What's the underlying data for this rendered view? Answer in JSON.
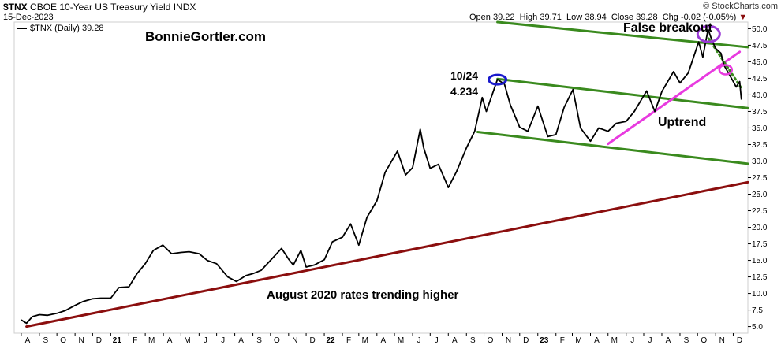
{
  "header": {
    "symbol": "$TNX",
    "name": "CBOE 10-Year US Treasury Yield",
    "exchange": "INDX",
    "date": "15-Dec-2023",
    "credit": "© StockCharts.com",
    "open_label": "Open",
    "open": "39.22",
    "high_label": "High",
    "high": "39.71",
    "low_label": "Low",
    "low": "38.94",
    "close_label": "Close",
    "close": "39.28",
    "chg_label": "Chg",
    "chg": "-0.02 (-0.05%)",
    "legend": "$TNX (Daily) 39.28"
  },
  "annotations": {
    "website": "BonnieGortler.com",
    "false_breakout": "False breakout",
    "peak_date": "10/24",
    "peak_value": "4.234",
    "uptrend": "Uptrend",
    "trend_note": "August 2020 rates trending higher"
  },
  "colors": {
    "price": "#000000",
    "channel": "#3a8a1e",
    "uptrend": "#e83adf",
    "longterm": "#8b0e0e",
    "website": "#3a8a1e",
    "blue_text": "#1a1acc",
    "false_breakout": "#9b3bd6"
  },
  "chart_data": {
    "type": "line",
    "series": [
      {
        "name": "$TNX (Daily)",
        "points": [
          [
            "2020-08-01",
            6.0
          ],
          [
            "2020-08-10",
            5.5
          ],
          [
            "2020-08-20",
            6.5
          ],
          [
            "2020-09-01",
            6.8
          ],
          [
            "2020-09-15",
            6.7
          ],
          [
            "2020-10-01",
            7.0
          ],
          [
            "2020-10-15",
            7.4
          ],
          [
            "2020-11-01",
            8.2
          ],
          [
            "2020-11-15",
            8.8
          ],
          [
            "2020-12-01",
            9.2
          ],
          [
            "2020-12-15",
            9.3
          ],
          [
            "2021-01-01",
            9.3
          ],
          [
            "2021-01-15",
            10.9
          ],
          [
            "2021-02-01",
            11.0
          ],
          [
            "2021-02-15",
            13.0
          ],
          [
            "2021-03-01",
            14.5
          ],
          [
            "2021-03-15",
            16.5
          ],
          [
            "2021-03-31",
            17.3
          ],
          [
            "2021-04-15",
            16.0
          ],
          [
            "2021-05-01",
            16.2
          ],
          [
            "2021-05-15",
            16.3
          ],
          [
            "2021-06-01",
            16.0
          ],
          [
            "2021-06-15",
            15.0
          ],
          [
            "2021-07-01",
            14.5
          ],
          [
            "2021-07-20",
            12.5
          ],
          [
            "2021-08-04",
            11.8
          ],
          [
            "2021-08-20",
            12.7
          ],
          [
            "2021-09-01",
            13.0
          ],
          [
            "2021-09-15",
            13.5
          ],
          [
            "2021-10-01",
            15.0
          ],
          [
            "2021-10-20",
            16.8
          ],
          [
            "2021-11-01",
            15.2
          ],
          [
            "2021-11-09",
            14.3
          ],
          [
            "2021-11-22",
            16.5
          ],
          [
            "2021-12-01",
            14.0
          ],
          [
            "2021-12-15",
            14.3
          ],
          [
            "2022-01-01",
            15.1
          ],
          [
            "2022-01-15",
            17.8
          ],
          [
            "2022-02-01",
            18.5
          ],
          [
            "2022-02-15",
            20.5
          ],
          [
            "2022-03-01",
            17.3
          ],
          [
            "2022-03-15",
            21.5
          ],
          [
            "2022-04-01",
            24.0
          ],
          [
            "2022-04-15",
            28.3
          ],
          [
            "2022-05-06",
            31.5
          ],
          [
            "2022-05-20",
            27.9
          ],
          [
            "2022-06-01",
            29.0
          ],
          [
            "2022-06-14",
            34.8
          ],
          [
            "2022-06-20",
            32.0
          ],
          [
            "2022-07-01",
            28.9
          ],
          [
            "2022-07-15",
            29.5
          ],
          [
            "2022-08-01",
            26.0
          ],
          [
            "2022-08-15",
            28.4
          ],
          [
            "2022-09-01",
            32.0
          ],
          [
            "2022-09-15",
            34.5
          ],
          [
            "2022-09-28",
            39.6
          ],
          [
            "2022-10-05",
            37.5
          ],
          [
            "2022-10-24",
            42.34
          ],
          [
            "2022-11-05",
            41.6
          ],
          [
            "2022-11-15",
            38.5
          ],
          [
            "2022-12-01",
            35.1
          ],
          [
            "2022-12-15",
            34.5
          ],
          [
            "2023-01-01",
            38.3
          ],
          [
            "2023-01-18",
            33.7
          ],
          [
            "2023-02-01",
            34.0
          ],
          [
            "2023-02-15",
            38.1
          ],
          [
            "2023-03-02",
            40.8
          ],
          [
            "2023-03-15",
            35.0
          ],
          [
            "2023-04-01",
            33.0
          ],
          [
            "2023-04-15",
            35.0
          ],
          [
            "2023-05-01",
            34.5
          ],
          [
            "2023-05-15",
            35.7
          ],
          [
            "2023-06-01",
            36.0
          ],
          [
            "2023-06-15",
            37.5
          ],
          [
            "2023-07-06",
            40.6
          ],
          [
            "2023-07-20",
            37.5
          ],
          [
            "2023-08-01",
            40.5
          ],
          [
            "2023-08-21",
            43.5
          ],
          [
            "2023-09-01",
            41.8
          ],
          [
            "2023-09-15",
            43.3
          ],
          [
            "2023-10-03",
            48.0
          ],
          [
            "2023-10-10",
            45.7
          ],
          [
            "2023-10-19",
            49.9
          ],
          [
            "2023-10-25",
            48.4
          ],
          [
            "2023-11-01",
            47.0
          ],
          [
            "2023-11-10",
            46.3
          ],
          [
            "2023-11-15",
            44.5
          ],
          [
            "2023-12-01",
            42.0
          ],
          [
            "2023-12-06",
            41.2
          ],
          [
            "2023-12-12",
            42.0
          ],
          [
            "2023-12-15",
            39.28
          ]
        ]
      }
    ],
    "x_labels": [
      "A",
      "S",
      "O",
      "N",
      "D",
      "21",
      "F",
      "M",
      "A",
      "M",
      "J",
      "J",
      "A",
      "S",
      "O",
      "N",
      "D",
      "22",
      "F",
      "M",
      "A",
      "M",
      "J",
      "J",
      "A",
      "S",
      "O",
      "N",
      "D",
      "23",
      "F",
      "M",
      "A",
      "M",
      "J",
      "J",
      "A",
      "S",
      "O",
      "N",
      "D"
    ],
    "x_label_months": [
      "2020-08",
      "2020-09",
      "2020-10",
      "2020-11",
      "2020-12",
      "2021-01",
      "2021-02",
      "2021-03",
      "2021-04",
      "2021-05",
      "2021-06",
      "2021-07",
      "2021-08",
      "2021-09",
      "2021-10",
      "2021-11",
      "2021-12",
      "2022-01",
      "2022-02",
      "2022-03",
      "2022-04",
      "2022-05",
      "2022-06",
      "2022-07",
      "2022-08",
      "2022-09",
      "2022-10",
      "2022-11",
      "2022-12",
      "2023-01",
      "2023-02",
      "2023-03",
      "2023-04",
      "2023-05",
      "2023-06",
      "2023-07",
      "2023-08",
      "2023-09",
      "2023-10",
      "2023-11",
      "2023-12"
    ],
    "y_ticks": [
      "5.0",
      "7.5",
      "10.0",
      "12.5",
      "15.0",
      "17.5",
      "20.0",
      "22.5",
      "25.0",
      "27.5",
      "30.0",
      "32.5",
      "35.0",
      "37.5",
      "40.0",
      "42.5",
      "45.0",
      "47.5",
      "50.0"
    ],
    "y_range": [
      4.0,
      51.0
    ],
    "x_range": [
      "2020-07-20",
      "2023-12-26"
    ],
    "grid": false,
    "trendlines": [
      {
        "id": "channel-top",
        "from": [
          "2022-10-24",
          42.4
        ],
        "to": [
          "2023-12-26",
          38.0
        ]
      },
      {
        "id": "channel-bottom",
        "from": [
          "2022-09-20",
          34.4
        ],
        "to": [
          "2023-12-26",
          29.6
        ]
      },
      {
        "id": "channel-upper-top",
        "from": [
          "2022-10-24",
          51.0
        ],
        "to": [
          "2023-12-26",
          47.2
        ]
      },
      {
        "id": "uptrend",
        "from": [
          "2023-05-01",
          32.6
        ],
        "to": [
          "2023-12-12",
          46.5
        ]
      },
      {
        "id": "longterm",
        "from": [
          "2020-08-10",
          5.0
        ],
        "to": [
          "2023-12-26",
          26.8
        ]
      },
      {
        "id": "dotted",
        "from": [
          "2023-10-20",
          48.5
        ],
        "to": [
          "2023-12-15",
          41.0
        ]
      }
    ]
  }
}
